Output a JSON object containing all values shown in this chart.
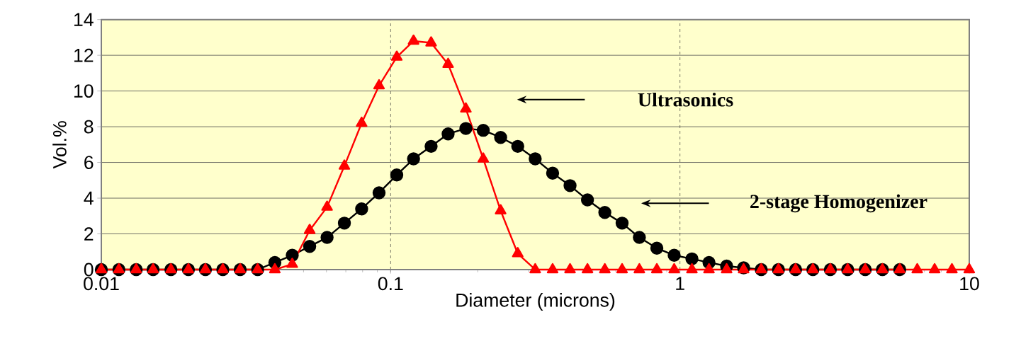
{
  "chart_data": {
    "type": "line",
    "xlabel": "Diameter (microns)",
    "ylabel": "Vol.%",
    "log": "x",
    "xlim": [
      0.01,
      10
    ],
    "xticks": [
      0.01,
      0.1,
      1,
      10
    ],
    "ylim": [
      0,
      14
    ],
    "yticks": [
      0,
      2,
      4,
      6,
      8,
      10,
      12,
      14
    ],
    "grid": true,
    "legend": false,
    "line_style": "solid",
    "annotations": [
      "Ultrasonics",
      "2-stage Homogenizer"
    ],
    "series": [
      {
        "color": "#000000",
        "marker": "circle",
        "x": [
          0.01,
          0.0115,
          0.0132,
          0.0151,
          0.0174,
          0.02,
          0.0229,
          0.0263,
          0.0302,
          0.0347,
          0.0398,
          0.0457,
          0.0525,
          0.0603,
          0.0692,
          0.0794,
          0.0912,
          0.105,
          0.12,
          0.138,
          0.158,
          0.182,
          0.209,
          0.24,
          0.275,
          0.316,
          0.363,
          0.417,
          0.479,
          0.55,
          0.631,
          0.724,
          0.832,
          0.955,
          1.1,
          1.26,
          1.45,
          1.66,
          1.91,
          2.19,
          2.51,
          2.88,
          3.31,
          3.8,
          4.37,
          5.01,
          5.75
        ],
        "values": [
          0,
          0,
          0,
          0,
          0,
          0,
          0,
          0,
          0,
          0,
          0.4,
          0.8,
          1.3,
          1.8,
          2.6,
          3.4,
          4.3,
          5.3,
          6.2,
          6.9,
          7.6,
          7.9,
          7.8,
          7.4,
          6.9,
          6.2,
          5.4,
          4.7,
          3.9,
          3.2,
          2.6,
          1.8,
          1.2,
          0.8,
          0.6,
          0.4,
          0.2,
          0.1,
          0,
          0,
          0,
          0,
          0,
          0,
          0,
          0,
          0
        ]
      },
      {
        "color": "#ff0000",
        "marker": "triangle",
        "x": [
          0.01,
          0.0115,
          0.0132,
          0.0151,
          0.0174,
          0.02,
          0.0229,
          0.0263,
          0.0302,
          0.0347,
          0.0398,
          0.0457,
          0.0525,
          0.0603,
          0.0692,
          0.0794,
          0.0912,
          0.105,
          0.12,
          0.138,
          0.158,
          0.182,
          0.209,
          0.24,
          0.275,
          0.316,
          0.363,
          0.417,
          0.479,
          0.55,
          0.631,
          0.724,
          0.832,
          0.955,
          1.1,
          1.26,
          1.45,
          1.66,
          1.91,
          2.19,
          2.51,
          2.88,
          3.31,
          3.8,
          4.37,
          5.01,
          5.75,
          6.61,
          7.59,
          8.71,
          10
        ],
        "values": [
          0,
          0,
          0,
          0,
          0,
          0,
          0,
          0,
          0,
          0,
          0,
          0.3,
          2.2,
          3.5,
          5.8,
          8.2,
          10.3,
          11.9,
          12.8,
          12.7,
          11.5,
          9.0,
          6.2,
          3.3,
          0.9,
          0,
          0,
          0,
          0,
          0,
          0,
          0,
          0,
          0,
          0,
          0,
          0,
          0,
          0,
          0,
          0,
          0,
          0,
          0,
          0,
          0,
          0,
          0,
          0,
          0,
          0
        ]
      }
    ]
  }
}
